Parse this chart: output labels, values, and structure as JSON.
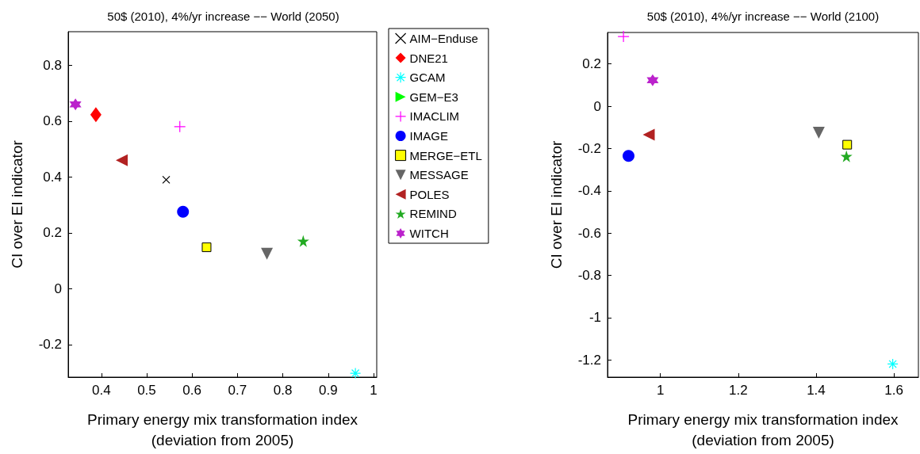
{
  "chart_data": [
    {
      "type": "scatter",
      "title": "50$ (2010), 4%/yr increase −− World (2050)",
      "xlabel": "Primary energy mix transformation index\n(deviation from 2005)",
      "ylabel": "CI over EI indicator",
      "xlim": [
        0.327,
        1.007
      ],
      "ylim": [
        -0.317,
        0.92
      ],
      "xticks": [
        0.4,
        0.5,
        0.6,
        0.7,
        0.8,
        0.9,
        1
      ],
      "yticks": [
        -0.2,
        0,
        0.2,
        0.4,
        0.6,
        0.8
      ],
      "grid": false,
      "legend": "right",
      "series": [
        {
          "name": "AIM−Enduse",
          "color": "#000000",
          "marker": "x",
          "x": [
            0.543
          ],
          "values": [
            0.39
          ]
        },
        {
          "name": "DNE21",
          "color": "#ff0000",
          "marker": "diamond",
          "x": [
            0.388
          ],
          "values": [
            0.623
          ]
        },
        {
          "name": "GCAM",
          "color": "#00ffff",
          "marker": "cross",
          "x": [
            0.96
          ],
          "values": [
            -0.303
          ]
        },
        {
          "name": "GEM−E3",
          "color": "#00ff00",
          "marker": "triangle-right"
        },
        {
          "name": "IMACLIM",
          "color": "#ff00ff",
          "marker": "plus",
          "x": [
            0.573
          ],
          "values": [
            0.58
          ]
        },
        {
          "name": "IMAGE",
          "color": "#0000ff",
          "marker": "circle",
          "x": [
            0.58
          ],
          "values": [
            0.275
          ]
        },
        {
          "name": "MERGE−ETL",
          "color": "#ffff00",
          "marker": "square",
          "x": [
            0.632
          ],
          "values": [
            0.148
          ]
        },
        {
          "name": "MESSAGE",
          "color": "#666666",
          "marker": "triangle-down",
          "x": [
            0.765
          ],
          "values": [
            0.125
          ]
        },
        {
          "name": "POLES",
          "color": "#b22222",
          "marker": "triangle-left",
          "x": [
            0.445
          ],
          "values": [
            0.46
          ]
        },
        {
          "name": "REMIND",
          "color": "#22aa22",
          "marker": "star",
          "x": [
            0.845
          ],
          "values": [
            0.17
          ]
        },
        {
          "name": "WITCH",
          "color": "#bb22cc",
          "x": [
            0.343
          ],
          "values": [
            0.66
          ]
        }
      ]
    },
    {
      "type": "scatter",
      "title": "50$ (2010), 4%/yr increase −− World (2100)",
      "xlabel": "Primary energy mix transformation index\n(deviation from 2005)",
      "ylabel": "CI over EI indicator",
      "xlim": [
        0.864,
        1.663
      ],
      "ylim": [
        -1.282,
        0.349
      ],
      "xticks": [
        1,
        1.2,
        1.4,
        1.6
      ],
      "yticks": [
        -1.2,
        -1,
        -0.8,
        -0.6,
        -0.4,
        -0.2,
        0,
        0.2
      ],
      "grid": false,
      "legend": false,
      "series": [
        {
          "color": "#00ffff",
          "marker": "cross",
          "x": [
            1.597
          ],
          "values": [
            -1.22
          ]
        },
        {
          "color": "#ff00ff",
          "marker": "plus",
          "x": [
            0.905
          ],
          "values": [
            0.33
          ]
        },
        {
          "color": "#0000ff",
          "marker": "circle",
          "x": [
            0.918
          ],
          "values": [
            -0.235
          ]
        },
        {
          "color": "#ffff00",
          "marker": "square",
          "x": [
            1.48
          ],
          "values": [
            -0.182
          ]
        },
        {
          "color": "#666666",
          "marker": "triangle-down",
          "x": [
            1.407
          ],
          "values": [
            -0.125
          ]
        },
        {
          "color": "#b22222",
          "marker": "triangle-left",
          "x": [
            0.97
          ],
          "values": [
            -0.135
          ]
        },
        {
          "color": "#22aa22",
          "marker": "star",
          "x": [
            1.478
          ],
          "values": [
            -0.237
          ]
        },
        {
          "color": "#bb22cc",
          "x": [
            0.98
          ],
          "values": [
            0.123
          ]
        }
      ]
    }
  ]
}
